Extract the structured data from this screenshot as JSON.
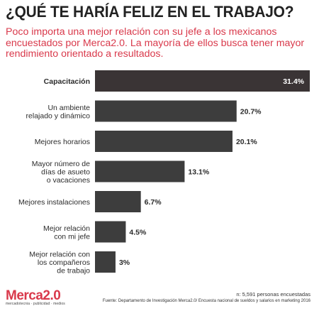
{
  "header": {
    "title": "¿QUÉ TE HARÍA FELIZ EN EL TRABAJO?",
    "subtitle": "Poco importa una mejor relación con su jefe a los mexicanos encuestados por Merca2.0. La mayoría de ellos busca tener mayor rendimiento orientado a resultados."
  },
  "chart_data": {
    "type": "bar",
    "orientation": "horizontal",
    "categories": [
      [
        "Capacitación"
      ],
      [
        "Un ambiente",
        "relajado y dinámico"
      ],
      [
        "Mejores horarios"
      ],
      [
        "Mayor número de",
        "días de asueto",
        "o vacaciones"
      ],
      [
        "Mejores instalaciones"
      ],
      [
        "Mejor relación",
        "con mi jefe"
      ],
      [
        "Mejor relación con",
        "los compañeros",
        "de trabajo"
      ]
    ],
    "values": [
      31.4,
      20.7,
      20.1,
      13.1,
      6.7,
      4.5,
      3
    ],
    "value_labels": [
      "31.4%",
      "20.7%",
      "20.1%",
      "13.1%",
      "6.7%",
      "4.5%",
      "3%"
    ],
    "xlim": [
      0,
      31.4
    ],
    "colors": {
      "highlight": "#3a3435",
      "bar": "#3d3d3d",
      "highlight_text": "#ffffff",
      "text": "#2b2b2b",
      "accent": "#d9394b"
    }
  },
  "footer": {
    "sample": "n: 5,591 personas encuestadas",
    "source": "Fuente: Departamento de Investigación Merca2.0/ Encuesta nacional de sueldos y salarios en marketing 2016"
  },
  "logo": {
    "name": "Merca2.0",
    "tagline": "mercadotecnia publicidad medios"
  }
}
